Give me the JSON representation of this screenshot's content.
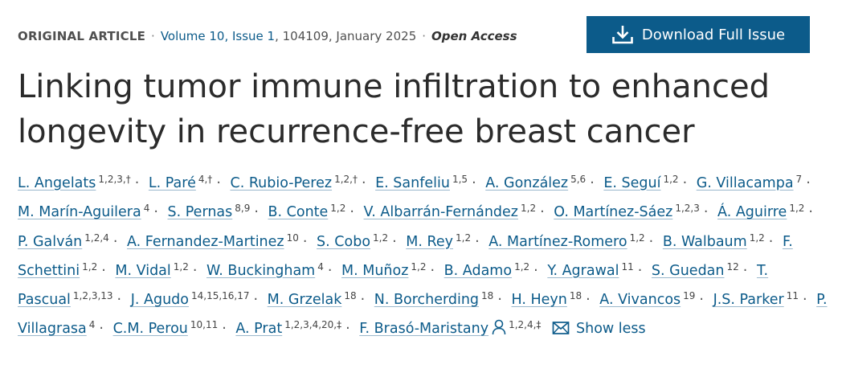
{
  "meta": {
    "article_type": "ORIGINAL ARTICLE",
    "volume_issue": "Volume 10, Issue 1",
    "details": ", 104109, January 2025",
    "access": "Open Access",
    "separator": "·"
  },
  "download_button": {
    "label": "Download Full Issue",
    "icon": "download-icon"
  },
  "title": "Linking tumor immune infiltration to enhanced longevity in recurrence-free breast cancer",
  "authors": [
    {
      "name": "L. Angelats",
      "aff": "1,2,3,†"
    },
    {
      "name": "L. Paré",
      "aff": "4,†"
    },
    {
      "name": "C. Rubio-Perez",
      "aff": "1,2,†"
    },
    {
      "name": "E. Sanfeliu",
      "aff": "1,5"
    },
    {
      "name": "A. González",
      "aff": "5,6"
    },
    {
      "name": "E. Seguí",
      "aff": "1,2"
    },
    {
      "name": "G. Villacampa",
      "aff": "7"
    },
    {
      "name": "M. Marín-Aguilera",
      "aff": "4"
    },
    {
      "name": "S. Pernas",
      "aff": "8,9"
    },
    {
      "name": "B. Conte",
      "aff": "1,2"
    },
    {
      "name": "V. Albarrán-Fernández",
      "aff": "1,2"
    },
    {
      "name": "O. Martínez-Sáez",
      "aff": "1,2,3"
    },
    {
      "name": "Á. Aguirre",
      "aff": "1,2"
    },
    {
      "name": "P. Galván",
      "aff": "1,2,4"
    },
    {
      "name": "A. Fernandez-Martinez",
      "aff": "10"
    },
    {
      "name": "S. Cobo",
      "aff": "1,2"
    },
    {
      "name": "M. Rey",
      "aff": "1,2"
    },
    {
      "name": "A. Martínez-Romero",
      "aff": "1,2"
    },
    {
      "name": "B. Walbaum",
      "aff": "1,2"
    },
    {
      "name": "F. Schettini",
      "aff": "1,2"
    },
    {
      "name": "M. Vidal",
      "aff": "1,2"
    },
    {
      "name": "W. Buckingham",
      "aff": "4"
    },
    {
      "name": "M. Muñoz",
      "aff": "1,2"
    },
    {
      "name": "B. Adamo",
      "aff": "1,2"
    },
    {
      "name": "Y. Agrawal",
      "aff": "11"
    },
    {
      "name": "S. Guedan",
      "aff": "12"
    },
    {
      "name": "T. Pascual",
      "aff": "1,2,3,13"
    },
    {
      "name": "J. Agudo",
      "aff": "14,15,16,17"
    },
    {
      "name": "M. Grzelak",
      "aff": "18"
    },
    {
      "name": "N. Borcherding",
      "aff": "18"
    },
    {
      "name": "H. Heyn",
      "aff": "18"
    },
    {
      "name": "A. Vivancos",
      "aff": "19"
    },
    {
      "name": "J.S. Parker",
      "aff": "11"
    },
    {
      "name": "P. Villagrasa",
      "aff": "4"
    },
    {
      "name": "C.M. Perou",
      "aff": "10,11"
    },
    {
      "name": "A. Prat",
      "aff": "1,2,3,4,20,‡"
    },
    {
      "name": "F. Brasó-Maristany",
      "aff": "1,2,4,‡",
      "corresponding": true
    }
  ],
  "show_less_label": "Show less",
  "icons": {
    "person": "person-icon",
    "mail": "mail-icon"
  },
  "colors": {
    "link": "#0c5b8a",
    "button_bg": "#0c5b8a",
    "title": "#2b2b2b"
  }
}
